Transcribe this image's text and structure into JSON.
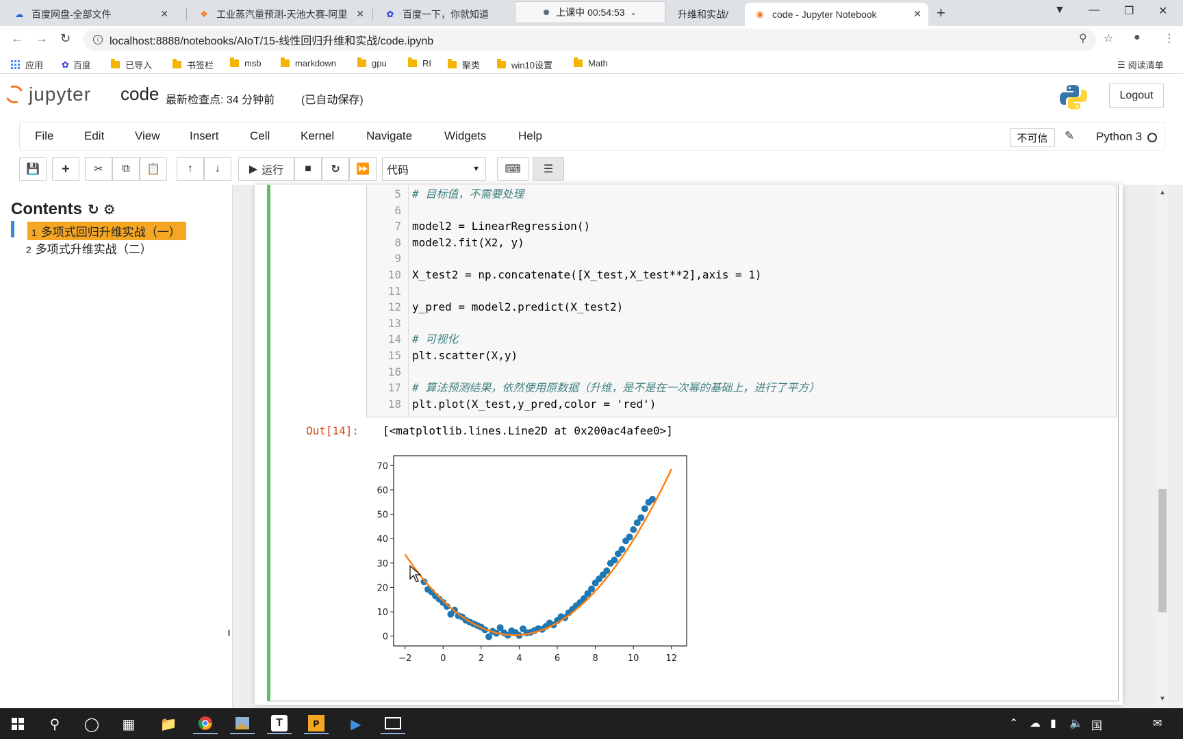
{
  "browser": {
    "tabs": [
      {
        "title": "百度网盘-全部文件",
        "icon": "baidu-pan-icon"
      },
      {
        "title": "工业蒸汽量预测-天池大赛-阿里云",
        "icon": "aliyun-icon"
      },
      {
        "title": "百度一下，你就知道",
        "icon": "baidu-paw-icon"
      },
      {
        "title": "升维和实战/",
        "icon": "jupyter-icon"
      },
      {
        "title": "code - Jupyter Notebook",
        "icon": "jupyter-icon",
        "active": true
      }
    ],
    "recording_overlay": "上课中 00:54:53",
    "url": "localhost:8888/notebooks/AIoT/15-线性回归升维和实战/code.ipynb",
    "bookmarks": [
      {
        "label": "应用",
        "icon": "apps-grid-icon"
      },
      {
        "label": "百度",
        "icon": "baidu-paw-icon"
      },
      {
        "label": "已导入",
        "icon": "folder-icon"
      },
      {
        "label": "书签栏",
        "icon": "folder-icon"
      },
      {
        "label": "msb",
        "icon": "folder-icon"
      },
      {
        "label": "markdown",
        "icon": "folder-icon"
      },
      {
        "label": "gpu",
        "icon": "folder-icon"
      },
      {
        "label": "RI",
        "icon": "folder-icon"
      },
      {
        "label": "聚类",
        "icon": "folder-icon"
      },
      {
        "label": "win10设置",
        "icon": "folder-icon"
      },
      {
        "label": "Math",
        "icon": "folder-icon"
      }
    ],
    "reading_list": "阅读清单"
  },
  "jupyter": {
    "logo_text": "jupyter",
    "notebook_name": "code",
    "checkpoint": "最新检查点: 34 分钟前",
    "autosave": "(已自动保存)",
    "logout": "Logout",
    "menu": [
      "File",
      "Edit",
      "View",
      "Insert",
      "Cell",
      "Kernel",
      "Navigate",
      "Widgets",
      "Help"
    ],
    "trusted": "不可信",
    "kernel": "Python 3",
    "run_label": "运行",
    "cell_type": "代码"
  },
  "toc": {
    "title": "Contents",
    "items": [
      {
        "num": "1",
        "label": "多项式回归升维实战（一）",
        "active": true
      },
      {
        "num": "2",
        "label": "多项式升维实战（二）",
        "active": false
      }
    ]
  },
  "code": [
    {
      "n": "5",
      "text": "# 目标值，不需要处理",
      "comment": true
    },
    {
      "n": "6",
      "text": ""
    },
    {
      "n": "7",
      "text": "model2 = LinearRegression()"
    },
    {
      "n": "8",
      "text": "model2.fit(X2, y)"
    },
    {
      "n": "9",
      "text": ""
    },
    {
      "n": "10",
      "text": "X_test2 = np.concatenate([X_test,X_test**2],axis = 1)"
    },
    {
      "n": "11",
      "text": ""
    },
    {
      "n": "12",
      "text": "y_pred = model2.predict(X_test2)"
    },
    {
      "n": "13",
      "text": ""
    },
    {
      "n": "14",
      "text": "# 可视化",
      "comment": true
    },
    {
      "n": "15",
      "text": "plt.scatter(X,y)"
    },
    {
      "n": "16",
      "text": ""
    },
    {
      "n": "17",
      "text": "# 算法预测结果，依然使用原数据（升维，是不是在一次幂的基础上，进行了平方）",
      "comment": true
    },
    {
      "n": "18",
      "text": "plt.plot(X_test,y_pred,color = 'red')"
    }
  ],
  "output": {
    "prompt": "Out[14]:",
    "text": "[<matplotlib.lines.Line2D at 0x200ac4afee0>]"
  },
  "chart_data": {
    "type": "scatter",
    "xlim": [
      -2.6,
      12.8
    ],
    "ylim": [
      -4,
      74
    ],
    "xticks": [
      "−2",
      "0",
      "2",
      "4",
      "6",
      "8",
      "10",
      "12"
    ],
    "yticks": [
      "0",
      "10",
      "20",
      "30",
      "40",
      "50",
      "60",
      "70"
    ],
    "scatter_color": "#1f77b4",
    "line_color": "#ff7f0e",
    "scatter": [
      [
        -1.0,
        22.3
      ],
      [
        -0.8,
        19.2
      ],
      [
        -0.6,
        18.1
      ],
      [
        -0.4,
        16.5
      ],
      [
        -0.2,
        15.2
      ],
      [
        0.0,
        13.8
      ],
      [
        0.2,
        12.2
      ],
      [
        0.4,
        9.0
      ],
      [
        0.6,
        10.7
      ],
      [
        0.8,
        8.4
      ],
      [
        1.0,
        7.9
      ],
      [
        1.2,
        6.5
      ],
      [
        1.4,
        5.8
      ],
      [
        1.6,
        5.1
      ],
      [
        1.8,
        4.4
      ],
      [
        2.0,
        3.7
      ],
      [
        2.2,
        2.6
      ],
      [
        2.4,
        -0.2
      ],
      [
        2.6,
        2.0
      ],
      [
        2.8,
        1.2
      ],
      [
        3.0,
        3.5
      ],
      [
        3.2,
        1.4
      ],
      [
        3.4,
        0.4
      ],
      [
        3.6,
        2.2
      ],
      [
        3.8,
        1.5
      ],
      [
        4.0,
        0.3
      ],
      [
        4.2,
        3.0
      ],
      [
        4.4,
        1.4
      ],
      [
        4.6,
        1.6
      ],
      [
        4.8,
        2.3
      ],
      [
        5.0,
        3.1
      ],
      [
        5.2,
        2.8
      ],
      [
        5.4,
        4.0
      ],
      [
        5.6,
        5.4
      ],
      [
        5.8,
        4.6
      ],
      [
        6.0,
        6.4
      ],
      [
        6.2,
        8.0
      ],
      [
        6.4,
        7.6
      ],
      [
        6.6,
        9.6
      ],
      [
        6.8,
        11.0
      ],
      [
        7.0,
        12.5
      ],
      [
        7.2,
        13.8
      ],
      [
        7.4,
        15.4
      ],
      [
        7.6,
        17.5
      ],
      [
        7.8,
        19.4
      ],
      [
        8.0,
        21.8
      ],
      [
        8.2,
        23.5
      ],
      [
        8.4,
        25.1
      ],
      [
        8.6,
        26.8
      ],
      [
        8.8,
        29.9
      ],
      [
        9.0,
        31.2
      ],
      [
        9.2,
        33.8
      ],
      [
        9.4,
        35.6
      ],
      [
        9.6,
        39.1
      ],
      [
        9.8,
        40.7
      ],
      [
        10.0,
        43.7
      ],
      [
        10.2,
        46.5
      ],
      [
        10.4,
        48.6
      ],
      [
        10.6,
        52.3
      ],
      [
        10.8,
        54.9
      ],
      [
        11.0,
        56.1
      ]
    ],
    "line_x_range": [
      -2,
      12
    ],
    "line_coeffs": {
      "a": 1.0,
      "b": -7.5,
      "c": 14.5
    }
  },
  "taskbar": {
    "apps": [
      "windows-start-icon",
      "search-icon",
      "cortana-icon",
      "task-view-icon",
      "file-explorer-icon",
      "chrome-icon",
      "photo-app-icon",
      "typora-icon",
      "pycharm-icon",
      "media-icon",
      "terminal-icon"
    ],
    "tray": [
      "chevron-up-icon",
      "cloud-icon",
      "battery-icon",
      "volume-icon",
      "language-icon",
      "notification-icon"
    ]
  },
  "colors": {
    "accent_orange": "#f37726",
    "toc_highlight": "#f5a623",
    "cell_selected": "#66bb6a",
    "out_prompt": "#d84315"
  }
}
